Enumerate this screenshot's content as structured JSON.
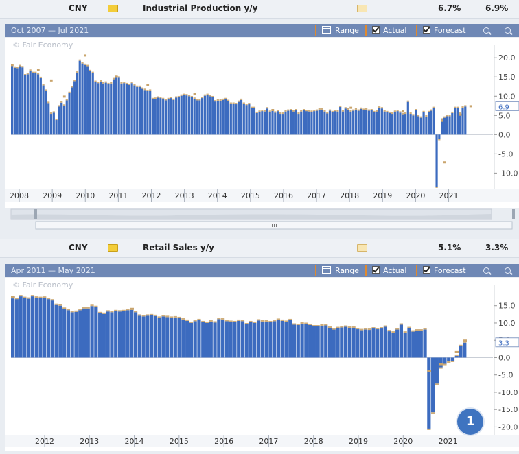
{
  "rows": [
    {
      "currency": "CNY",
      "event": "Industrial Production y/y",
      "actual": "6.7%",
      "forecast": "6.9%"
    },
    {
      "currency": "CNY",
      "event": "Retail Sales y/y",
      "actual": "5.1%",
      "forecast": "3.3%"
    }
  ],
  "toolbar": {
    "range_label": "Range",
    "actual_label": "Actual",
    "forecast_label": "Forecast"
  },
  "colors": {
    "actual": "#3c6bbf",
    "forecast": "#c9a46c",
    "toolbar": "#6f88b5"
  },
  "chart_data": [
    {
      "type": "bar",
      "date_range": "Oct 2007 — Jul 2021",
      "watermark": "© Fair Economy",
      "ylim": [
        -13.5,
        22
      ],
      "yticks": [
        20.0,
        15.0,
        10.0,
        5.0,
        0.0,
        -5.0,
        -10.0
      ],
      "x_start": 2007.75,
      "x_end": 2021.55,
      "year_labels": [
        "2008",
        "2009",
        "2010",
        "2011",
        "2012",
        "2013",
        "2014",
        "2015",
        "2016",
        "2017",
        "2018",
        "2019",
        "2020",
        "2021"
      ],
      "actual_label": "6.9",
      "series": [
        {
          "name": "Actual",
          "values": [
            17.9,
            17.4,
            17.3,
            17.8,
            17.5,
            15.4,
            15.7,
            16.6,
            16.0,
            16.0,
            15.7,
            14.7,
            12.8,
            11.4,
            8.2,
            5.4,
            5.7,
            3.8,
            7.3,
            8.3,
            7.5,
            8.9,
            10.8,
            12.3,
            13.9,
            16.1,
            19.2,
            18.5,
            18.1,
            17.8,
            16.5,
            16.0,
            13.7,
            13.4,
            13.8,
            13.3,
            13.5,
            13.1,
            13.3,
            14.4,
            14.8,
            14.8,
            13.3,
            13.4,
            13.1,
            12.9,
            13.4,
            12.8,
            12.4,
            12.4,
            11.9,
            11.6,
            11.3,
            11.4,
            9.2,
            9.3,
            9.6,
            9.5,
            9.2,
            8.9,
            9.2,
            9.5,
            9.0,
            9.6,
            9.7,
            10.1,
            10.3,
            10.2,
            10.0,
            9.7,
            9.3,
            8.9,
            8.9,
            9.5,
            10.1,
            10.3,
            10.0,
            9.7,
            8.6,
            8.8,
            8.8,
            9.0,
            9.2,
            8.7,
            8.0,
            8.0,
            7.9,
            8.5,
            9.0,
            8.0,
            7.7,
            7.9,
            6.9,
            6.9,
            5.6,
            5.9,
            6.1,
            6.0,
            6.8,
            5.9,
            6.3,
            5.7,
            6.1,
            5.4,
            5.4,
            6.0,
            6.2,
            6.3,
            6.0,
            6.3,
            5.4,
            6.0,
            6.3,
            6.1,
            6.0,
            5.9,
            6.1,
            6.2,
            6.5,
            6.5,
            6.0,
            5.5,
            6.2,
            5.8,
            6.1,
            6.0,
            7.2,
            6.0,
            6.8,
            6.5,
            6.0,
            6.2,
            6.5,
            6.2,
            6.7,
            6.4,
            6.5,
            6.2,
            6.3,
            5.8,
            6.0,
            7.0,
            6.8,
            6.0,
            5.8,
            5.6,
            5.4,
            5.9,
            6.1,
            5.7,
            5.3,
            5.4,
            8.5,
            5.4,
            5.0,
            6.3,
            4.8,
            4.4,
            5.8,
            4.7,
            5.8,
            6.2,
            6.9,
            -13.5,
            -1.1,
            3.9,
            4.4,
            4.8,
            4.8,
            5.6,
            6.9,
            6.9,
            5.4,
            7.0,
            7.3
          ],
          "forecast_markers": [
            {
              "i": 0,
              "v": 18.0
            },
            {
              "i": 10,
              "v": 16.7
            },
            {
              "i": 15,
              "v": 14.0
            },
            {
              "i": 20,
              "v": 9.8
            },
            {
              "i": 28,
              "v": 20.5
            },
            {
              "i": 40,
              "v": 15.0
            },
            {
              "i": 52,
              "v": 12.9
            },
            {
              "i": 70,
              "v": 10.5
            },
            {
              "i": 100,
              "v": 6.3
            },
            {
              "i": 130,
              "v": 6.9
            },
            {
              "i": 150,
              "v": 6.1
            },
            {
              "i": 165,
              "v": 3.5
            },
            {
              "i": 166,
              "v": -7.3
            },
            {
              "i": 172,
              "v": 5.1
            },
            {
              "i": 176,
              "v": 7.3
            }
          ]
        }
      ]
    },
    {
      "type": "bar",
      "date_range": "Apr 2011 — May 2021",
      "watermark": "© Fair Economy",
      "ylim": [
        -21.5,
        19.5
      ],
      "yticks": [
        15.0,
        10.0,
        5.0,
        0.0,
        -5.0,
        -10.0,
        -15.0,
        -20.0
      ],
      "x_start": 2011.25,
      "x_end": 2021.42,
      "year_labels": [
        "2012",
        "2013",
        "2014",
        "2015",
        "2016",
        "2017",
        "2018",
        "2019",
        "2020",
        "2021"
      ],
      "actual_label": "3.3",
      "series": [
        {
          "name": "Actual",
          "values": [
            17.1,
            16.9,
            17.7,
            17.2,
            17.0,
            17.7,
            17.3,
            17.2,
            17.3,
            16.9,
            16.5,
            15.2,
            15.0,
            14.1,
            13.7,
            13.1,
            13.2,
            13.7,
            14.2,
            14.2,
            14.9,
            14.6,
            12.8,
            12.6,
            13.3,
            13.1,
            13.4,
            13.3,
            13.4,
            13.7,
            13.8,
            13.1,
            12.1,
            11.9,
            12.1,
            12.2,
            12.0,
            11.5,
            11.9,
            11.7,
            11.5,
            11.6,
            11.4,
            11.0,
            10.6,
            10.0,
            10.5,
            10.8,
            10.2,
            10.0,
            10.4,
            10.1,
            11.1,
            11.0,
            10.5,
            10.3,
            10.2,
            10.6,
            10.5,
            9.6,
            10.2,
            10.0,
            10.7,
            10.4,
            10.4,
            10.2,
            10.5,
            10.9,
            10.6,
            10.3,
            10.8,
            9.5,
            9.4,
            9.8,
            9.7,
            9.4,
            9.0,
            9.0,
            9.2,
            9.3,
            8.6,
            8.1,
            8.5,
            8.7,
            8.9,
            8.6,
            8.6,
            8.2,
            7.9,
            8.1,
            8.0,
            8.4,
            8.2,
            8.4,
            8.9,
            7.6,
            7.2,
            8.1,
            9.5,
            7.2,
            8.5,
            7.5,
            7.8,
            7.8,
            8.1,
            -20.5,
            -15.8,
            -7.5,
            -2.8,
            -1.8,
            -1.1,
            -0.9,
            0.5,
            3.3,
            4.3
          ],
          "forecast_markers": [
            {
              "i": 0,
              "v": 17.5
            },
            {
              "i": 30,
              "v": 14.0
            },
            {
              "i": 105,
              "v": -4.0
            },
            {
              "i": 108,
              "v": -2.0
            },
            {
              "i": 112,
              "v": 1.5
            },
            {
              "i": 114,
              "v": 4.8
            }
          ]
        }
      ]
    }
  ],
  "badge": "1"
}
